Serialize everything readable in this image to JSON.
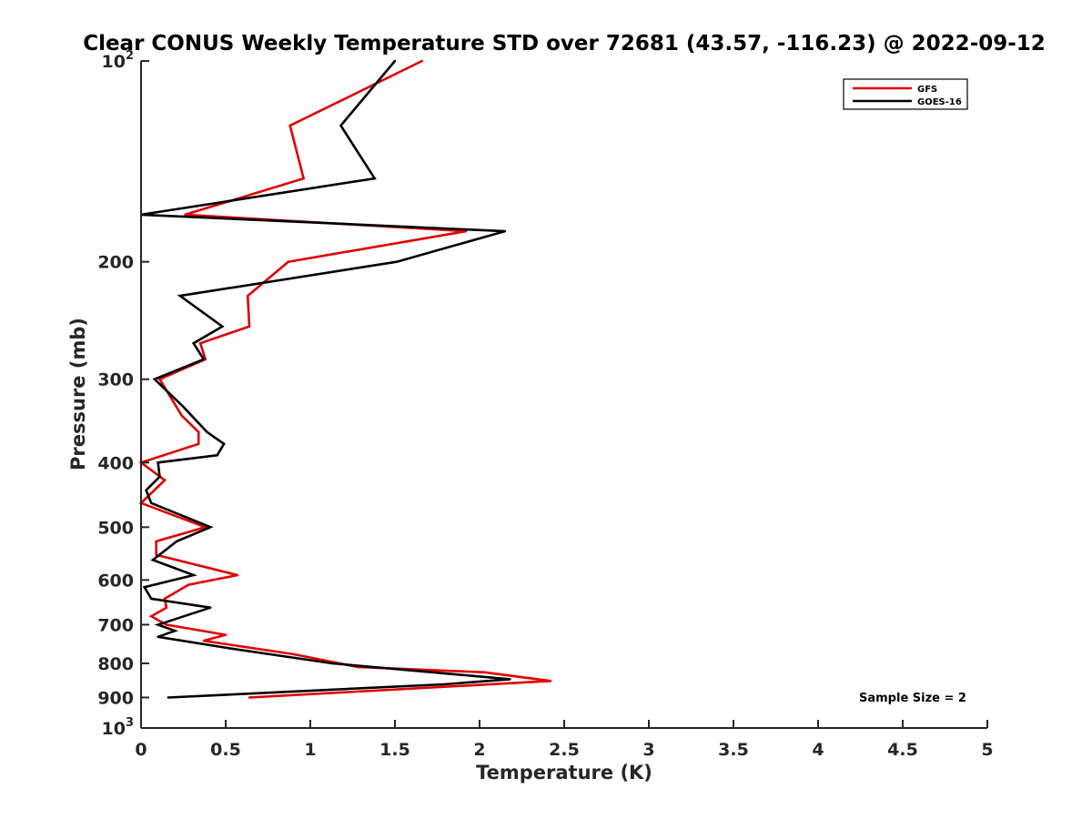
{
  "chart_data": {
    "type": "line",
    "title": "Clear CONUS Weekly Temperature STD over 72681 (43.57, -116.23) @ 2022-09-12",
    "xlabel": "Temperature (K)",
    "ylabel": "Pressure (mb)",
    "xlim": [
      0,
      5
    ],
    "ylim": [
      100,
      1000
    ],
    "y_scale": "log",
    "y_reversed": true,
    "grid": false,
    "legend_position": "top-right",
    "x_ticks": [
      "0",
      "0.5",
      "1",
      "1.5",
      "2",
      "2.5",
      "3",
      "3.5",
      "4",
      "4.5",
      "5"
    ],
    "y_ticks": [
      {
        "value": 100,
        "label": "10",
        "sup": "2"
      },
      {
        "value": 200,
        "label": "200",
        "sup": ""
      },
      {
        "value": 300,
        "label": "300",
        "sup": ""
      },
      {
        "value": 400,
        "label": "400",
        "sup": ""
      },
      {
        "value": 500,
        "label": "500",
        "sup": ""
      },
      {
        "value": 600,
        "label": "600",
        "sup": ""
      },
      {
        "value": 700,
        "label": "700",
        "sup": ""
      },
      {
        "value": 800,
        "label": "800",
        "sup": ""
      },
      {
        "value": 900,
        "label": "900",
        "sup": ""
      },
      {
        "value": 1000,
        "label": "10",
        "sup": "3"
      }
    ],
    "series": [
      {
        "name": "GFS",
        "color": "#e00000",
        "points": [
          [
            1.66,
            100
          ],
          [
            0.88,
            125
          ],
          [
            0.96,
            150
          ],
          [
            0.26,
            170
          ],
          [
            1.92,
            180
          ],
          [
            0.87,
            200
          ],
          [
            0.63,
            225
          ],
          [
            0.64,
            250
          ],
          [
            0.35,
            265
          ],
          [
            0.38,
            280
          ],
          [
            0.11,
            300
          ],
          [
            0.24,
            340
          ],
          [
            0.34,
            360
          ],
          [
            0.34,
            375
          ],
          [
            0.0,
            400
          ],
          [
            0.14,
            425
          ],
          [
            0.0,
            460
          ],
          [
            0.38,
            500
          ],
          [
            0.09,
            525
          ],
          [
            0.09,
            550
          ],
          [
            0.57,
            590
          ],
          [
            0.28,
            610
          ],
          [
            0.14,
            640
          ],
          [
            0.15,
            660
          ],
          [
            0.06,
            680
          ],
          [
            0.15,
            700
          ],
          [
            0.5,
            725
          ],
          [
            0.37,
            740
          ],
          [
            0.9,
            775
          ],
          [
            1.28,
            810
          ],
          [
            2.03,
            825
          ],
          [
            2.42,
            850
          ],
          [
            0.64,
            900
          ]
        ]
      },
      {
        "name": "GOES-16",
        "color": "#000000",
        "points": [
          [
            1.5,
            100
          ],
          [
            1.18,
            125
          ],
          [
            1.38,
            150
          ],
          [
            0.0,
            170
          ],
          [
            2.15,
            180
          ],
          [
            1.51,
            200
          ],
          [
            0.23,
            225
          ],
          [
            0.48,
            250
          ],
          [
            0.31,
            265
          ],
          [
            0.37,
            280
          ],
          [
            0.08,
            300
          ],
          [
            0.25,
            330
          ],
          [
            0.39,
            360
          ],
          [
            0.49,
            375
          ],
          [
            0.45,
            390
          ],
          [
            0.1,
            400
          ],
          [
            0.11,
            420
          ],
          [
            0.03,
            440
          ],
          [
            0.06,
            460
          ],
          [
            0.41,
            500
          ],
          [
            0.21,
            525
          ],
          [
            0.07,
            560
          ],
          [
            0.31,
            590
          ],
          [
            0.02,
            615
          ],
          [
            0.06,
            640
          ],
          [
            0.41,
            660
          ],
          [
            0.1,
            700
          ],
          [
            0.2,
            715
          ],
          [
            0.1,
            730
          ],
          [
            0.53,
            760
          ],
          [
            1.13,
            800
          ],
          [
            2.18,
            845
          ],
          [
            1.79,
            860
          ],
          [
            0.16,
            900
          ]
        ]
      }
    ],
    "annotations": [
      {
        "text": "Sample Size = 2",
        "x": 4.5,
        "y": 900
      }
    ]
  }
}
